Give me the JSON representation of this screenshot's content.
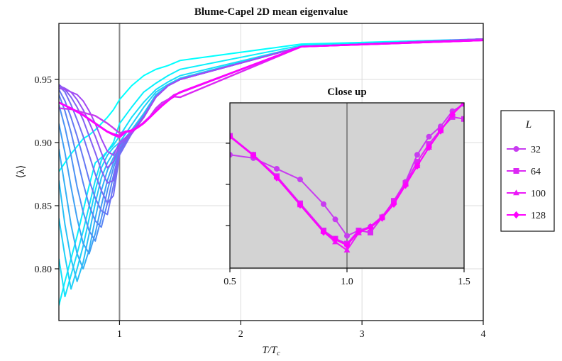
{
  "chart_data": [
    {
      "type": "line",
      "title": "Blume-Capel 2D mean eigenvalue",
      "xlabel": {
        "base": "T/T",
        "sub": "c"
      },
      "ylabel": "⟨λ⟩",
      "xlim": [
        0.5,
        4.0
      ],
      "ylim": [
        0.76,
        0.995
      ],
      "xticks": [
        "1",
        "2",
        "3",
        "4"
      ],
      "xtick_values": [
        1,
        2,
        3,
        4
      ],
      "yticks": [
        "0.80",
        "0.85",
        "0.90",
        "0.95"
      ],
      "ytick_values": [
        0.8,
        0.85,
        0.9,
        0.95
      ],
      "grid": true,
      "reference_line_x": 1.0,
      "unlabeled_x": [
        0.5,
        0.55,
        0.6,
        0.65,
        0.7,
        0.75,
        0.8,
        0.85,
        0.9,
        0.95,
        1.0,
        1.1,
        1.2,
        1.3,
        1.4,
        1.5,
        2.5,
        4.0
      ],
      "unlabeled_series": [
        {
          "color": "#00ffff",
          "values": [
            0.877,
            0.884,
            0.891,
            0.897,
            0.903,
            0.906,
            0.91,
            0.915,
            0.92,
            0.926,
            0.934,
            0.945,
            0.953,
            0.958,
            0.961,
            0.965,
            0.978,
            0.982
          ]
        },
        {
          "color": "#0af0fc",
          "values": [
            0.771,
            0.79,
            0.808,
            0.826,
            0.846,
            0.866,
            0.884,
            0.888,
            0.893,
            0.9,
            0.915,
            0.928,
            0.94,
            0.947,
            0.953,
            0.958,
            0.977,
            0.982
          ]
        },
        {
          "color": "#14e0fa",
          "values": [
            0.808,
            0.778,
            0.795,
            0.812,
            0.83,
            0.85,
            0.87,
            0.886,
            0.893,
            0.898,
            0.905,
            0.92,
            0.932,
            0.942,
            0.948,
            0.953,
            0.976,
            0.982
          ]
        },
        {
          "color": "#1ed0f8",
          "values": [
            0.84,
            0.81,
            0.784,
            0.8,
            0.818,
            0.84,
            0.862,
            0.88,
            0.89,
            0.896,
            0.9,
            0.914,
            0.928,
            0.94,
            0.946,
            0.951,
            0.976,
            0.982
          ]
        },
        {
          "color": "#28c0f6",
          "values": [
            0.87,
            0.835,
            0.808,
            0.79,
            0.805,
            0.828,
            0.852,
            0.872,
            0.884,
            0.892,
            0.898,
            0.91,
            0.923,
            0.938,
            0.945,
            0.95,
            0.976,
            0.982
          ]
        },
        {
          "color": "#34b0f5",
          "values": [
            0.895,
            0.865,
            0.835,
            0.812,
            0.8,
            0.815,
            0.84,
            0.862,
            0.878,
            0.888,
            0.896,
            0.909,
            0.922,
            0.937,
            0.945,
            0.95,
            0.976,
            0.982
          ]
        },
        {
          "color": "#40a0f4",
          "values": [
            0.915,
            0.892,
            0.865,
            0.84,
            0.82,
            0.812,
            0.828,
            0.85,
            0.87,
            0.884,
            0.895,
            0.908,
            0.921,
            0.936,
            0.945,
            0.95,
            0.976,
            0.982
          ]
        },
        {
          "color": "#4c92f4",
          "values": [
            0.93,
            0.912,
            0.89,
            0.865,
            0.845,
            0.83,
            0.822,
            0.84,
            0.862,
            0.88,
            0.894,
            0.908,
            0.921,
            0.936,
            0.945,
            0.95,
            0.976,
            0.982
          ]
        },
        {
          "color": "#5884f4",
          "values": [
            0.938,
            0.925,
            0.908,
            0.888,
            0.868,
            0.85,
            0.838,
            0.833,
            0.852,
            0.874,
            0.893,
            0.907,
            0.92,
            0.936,
            0.945,
            0.95,
            0.976,
            0.982
          ]
        },
        {
          "color": "#6678f4",
          "values": [
            0.942,
            0.933,
            0.92,
            0.905,
            0.888,
            0.87,
            0.856,
            0.846,
            0.843,
            0.866,
            0.892,
            0.907,
            0.92,
            0.936,
            0.945,
            0.95,
            0.976,
            0.982
          ]
        },
        {
          "color": "#746cf4",
          "values": [
            0.945,
            0.94,
            0.93,
            0.918,
            0.905,
            0.89,
            0.875,
            0.862,
            0.852,
            0.858,
            0.89,
            0.907,
            0.92,
            0.936,
            0.945,
            0.95,
            0.976,
            0.982
          ]
        },
        {
          "color": "#8460f4",
          "values": [
            0.946,
            0.942,
            0.936,
            0.928,
            0.918,
            0.905,
            0.892,
            0.878,
            0.868,
            0.87,
            0.895,
            0.907,
            0.92,
            0.936,
            0.945,
            0.95,
            0.976,
            0.982
          ]
        },
        {
          "color": "#9454f4",
          "values": [
            0.945,
            0.943,
            0.94,
            0.934,
            0.926,
            0.916,
            0.905,
            0.892,
            0.88,
            0.885,
            0.898,
            0.907,
            0.92,
            0.936,
            0.945,
            0.95,
            0.976,
            0.982
          ]
        },
        {
          "color": "#a448f4",
          "values": [
            0.943,
            0.942,
            0.94,
            0.938,
            0.933,
            0.925,
            0.915,
            0.903,
            0.893,
            0.89,
            0.9,
            0.908,
            0.92,
            0.936,
            0.945,
            0.95,
            0.976,
            0.982
          ]
        }
      ],
      "x": [
        0.5,
        0.6,
        0.7,
        0.8,
        0.9,
        0.95,
        1.0,
        1.05,
        1.1,
        1.15,
        1.2,
        1.25,
        1.3,
        1.35,
        1.4,
        1.45,
        1.5,
        2.5,
        4.0
      ],
      "series": [
        {
          "name": "32",
          "color": "#c83cf0",
          "marker": "circle",
          "values": [
            0.9272,
            0.9264,
            0.9238,
            0.9212,
            0.9152,
            0.9115,
            0.9075,
            0.9088,
            0.9097,
            0.912,
            0.916,
            0.9206,
            0.9272,
            0.9316,
            0.9341,
            0.9378,
            0.9395,
            0.976,
            0.981
          ]
        },
        {
          "name": "64",
          "color": "#dc28f4",
          "marker": "square",
          "values": [
            0.9318,
            0.9272,
            0.922,
            0.9154,
            0.9088,
            0.9068,
            0.9056,
            0.9088,
            0.9083,
            0.912,
            0.916,
            0.9203,
            0.9255,
            0.9298,
            0.9333,
            0.9364,
            0.9359,
            0.976,
            0.981
          ]
        },
        {
          "name": "100",
          "color": "#ec18f8",
          "marker": "triangle",
          "values": [
            0.9318,
            0.9272,
            0.9218,
            0.915,
            0.9085,
            0.906,
            0.904,
            0.9082,
            0.9098,
            0.9122,
            0.9158,
            0.92,
            0.9245,
            0.929,
            0.933,
            0.9372,
            0.94,
            0.976,
            0.981
          ]
        },
        {
          "name": "128",
          "color": "#ff00ff",
          "marker": "diamond",
          "values": [
            0.9316,
            0.927,
            0.9216,
            0.915,
            0.9084,
            0.9066,
            0.9052,
            0.9085,
            0.9095,
            0.9118,
            0.9152,
            0.9198,
            0.9245,
            0.929,
            0.933,
            0.937,
            0.9398,
            0.976,
            0.981
          ]
        }
      ],
      "legend": {
        "title": "L",
        "placement": "right-outside",
        "entries": [
          "32",
          "64",
          "100",
          "128"
        ]
      }
    },
    {
      "type": "line",
      "title": "Close up",
      "xlim": [
        0.5,
        1.5
      ],
      "ylim": [
        0.8997,
        0.9399
      ],
      "xticks": [
        "0.5",
        "1.0",
        "1.5"
      ],
      "xtick_values": [
        0.5,
        1.0,
        1.5
      ],
      "ytick_values": [
        0.91,
        0.92,
        0.93
      ],
      "background": "#d3d3d3",
      "reference_line_x": 1.0,
      "series_ref": "same as main chart series (L = 32, 64, 100, 128) with markers"
    }
  ]
}
